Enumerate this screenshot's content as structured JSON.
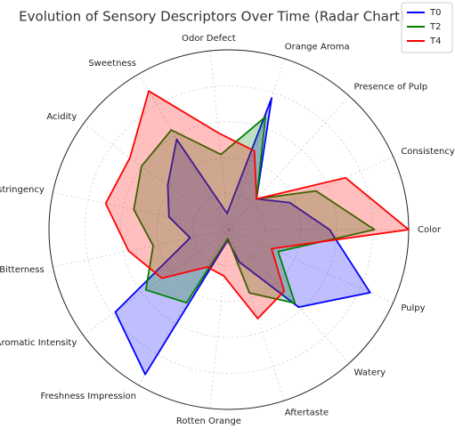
{
  "chart_data": {
    "type": "radar",
    "title": "Evolution of Sensory Descriptors Over Time (Radar Chart)",
    "categories": [
      "Color",
      "Consistency",
      "Presence of Pulp",
      "Orange Aroma",
      "Odor Defect",
      "Sweetness",
      "Acidity",
      "Astringency",
      "Bitterness",
      "Aromatic Intensity",
      "Freshness Impression",
      "Rotten Orange",
      "Aftertaste",
      "Watery",
      "Pulpy"
    ],
    "ylim": [
      0,
      10
    ],
    "legend": "upper right",
    "series": [
      {
        "name": "T0",
        "color": "#0000ff",
        "values": [
          5.6,
          3.7,
          2.3,
          7.7,
          0.9,
          5.8,
          4.2,
          3.4,
          2.2,
          7.8,
          9.3,
          0.6,
          1.9,
          5.8,
          8.6
        ]
      },
      {
        "name": "T2",
        "color": "#008000",
        "values": [
          8.1,
          5.3,
          2.3,
          6.6,
          4.2,
          6.4,
          6.0,
          5.4,
          4.3,
          5.7,
          4.7,
          0.5,
          3.7,
          5.5,
          3.0
        ]
      },
      {
        "name": "T4",
        "color": "#ff0000",
        "values": [
          10,
          7.1,
          2.3,
          4.6,
          5.4,
          8.9,
          6.8,
          7.0,
          5.7,
          4.6,
          2.4,
          2.6,
          5.2,
          4.6,
          2.6
        ]
      }
    ]
  }
}
